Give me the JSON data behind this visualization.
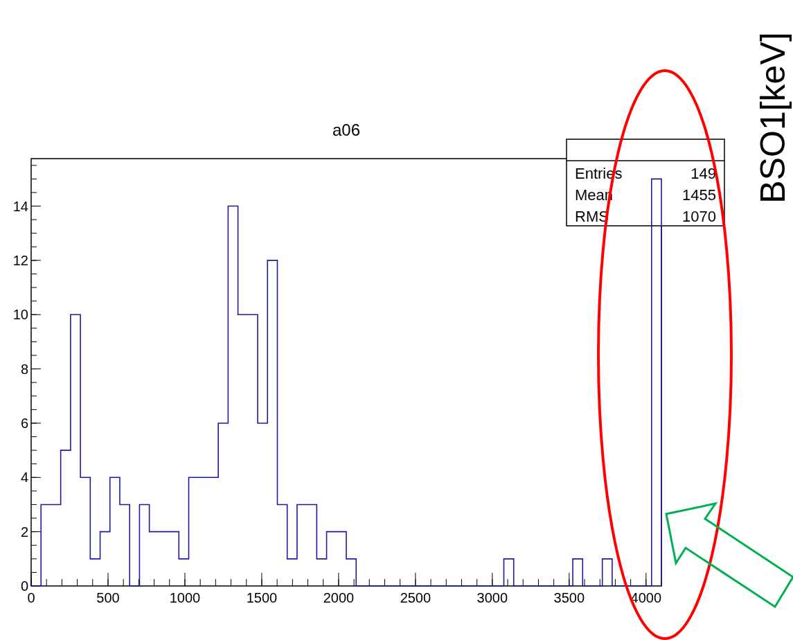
{
  "chart_data": {
    "type": "histogram",
    "title": "a06",
    "bins": [
      0,
      64.0625,
      128.125,
      192.1875,
      256.25,
      320.3125,
      384.375,
      448.4375,
      512.5,
      576.5625,
      640.625,
      704.6875,
      768.75,
      832.8125,
      896.875,
      960.9375,
      1025,
      1089.0625,
      1153.125,
      1217.1875,
      1281.25,
      1345.3125,
      1409.375,
      1473.4375,
      1537.5,
      1601.5625,
      1665.625,
      1729.6875,
      1793.75,
      1857.8125,
      1921.875,
      1985.9375,
      2050,
      2114.0625,
      2178.125,
      2242.1875,
      2306.25,
      2370.3125,
      2434.375,
      2498.4375,
      2562.5,
      2626.5625,
      2690.625,
      2754.6875,
      2818.75,
      2882.8125,
      2946.875,
      3010.9375,
      3075,
      3139.0625,
      3203.125,
      3267.1875,
      3331.25,
      3395.3125,
      3459.375,
      3523.4375,
      3587.5,
      3651.5625,
      3715.625,
      3779.6875,
      3843.75,
      3907.8125,
      3971.875,
      4035.9375,
      4100
    ],
    "values": [
      0,
      3,
      3,
      5,
      10,
      4,
      1,
      2,
      4,
      3,
      0,
      3,
      2,
      2,
      2,
      1,
      4,
      4,
      4,
      6,
      14,
      10,
      10,
      6,
      12,
      3,
      1,
      3,
      3,
      1,
      2,
      2,
      1,
      0,
      0,
      0,
      0,
      0,
      0,
      0,
      0,
      0,
      0,
      0,
      0,
      0,
      0,
      0,
      1,
      0,
      0,
      0,
      0,
      0,
      0,
      1,
      0,
      0,
      1,
      0,
      0,
      0,
      0,
      15
    ],
    "color": "#1a1aa6",
    "xlim": [
      0,
      4100
    ],
    "xticks": [
      0,
      500,
      1000,
      1500,
      2000,
      2500,
      3000,
      3500,
      4000
    ],
    "ylim": [
      0,
      15.75
    ],
    "yticks": [
      0,
      2,
      4,
      6,
      8,
      10,
      12,
      14
    ],
    "grid": false,
    "annotations": [
      "Entries",
      "149",
      "Mean",
      "1455",
      "RMS",
      "1070",
      "BSO1[keV]"
    ]
  }
}
